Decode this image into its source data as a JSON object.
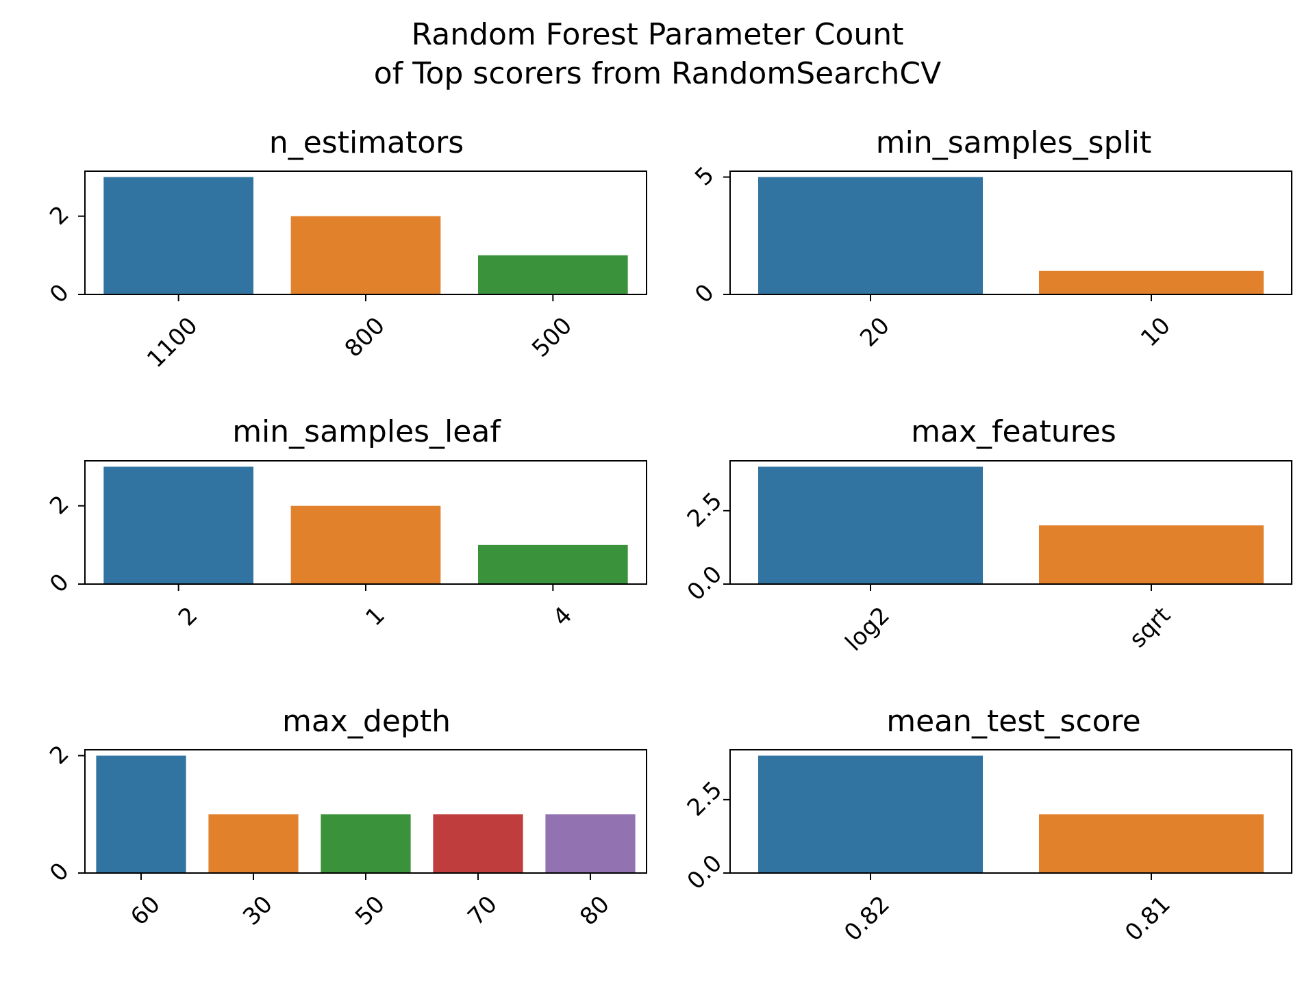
{
  "figure": {
    "title_line1": "Random Forest Parameter Count",
    "title_line2": "of Top scorers from RandomSearchCV"
  },
  "chart_data": [
    {
      "type": "bar",
      "title": "n_estimators",
      "categories": [
        "1100",
        "800",
        "500"
      ],
      "values": [
        3,
        2,
        1
      ],
      "ylim": [
        0,
        3.15
      ],
      "yticks": [
        {
          "v": 0,
          "label": "0"
        },
        {
          "v": 2,
          "label": "2"
        }
      ],
      "colors": [
        "#3274a1",
        "#e1812c",
        "#3a923a"
      ]
    },
    {
      "type": "bar",
      "title": "min_samples_split",
      "categories": [
        "20",
        "10"
      ],
      "values": [
        5,
        1
      ],
      "ylim": [
        0,
        5.25
      ],
      "yticks": [
        {
          "v": 0,
          "label": "0"
        },
        {
          "v": 5,
          "label": "5"
        }
      ],
      "colors": [
        "#3274a1",
        "#e1812c"
      ]
    },
    {
      "type": "bar",
      "title": "min_samples_leaf",
      "categories": [
        "2",
        "1",
        "4"
      ],
      "values": [
        3,
        2,
        1
      ],
      "ylim": [
        0,
        3.15
      ],
      "yticks": [
        {
          "v": 0,
          "label": "0"
        },
        {
          "v": 2,
          "label": "2"
        }
      ],
      "colors": [
        "#3274a1",
        "#e1812c",
        "#3a923a"
      ]
    },
    {
      "type": "bar",
      "title": "max_features",
      "categories": [
        "log2",
        "sqrt"
      ],
      "values": [
        4,
        2
      ],
      "ylim": [
        0,
        4.2
      ],
      "yticks": [
        {
          "v": 0,
          "label": "0.0"
        },
        {
          "v": 2.5,
          "label": "2.5"
        }
      ],
      "colors": [
        "#3274a1",
        "#e1812c"
      ]
    },
    {
      "type": "bar",
      "title": "max_depth",
      "categories": [
        "60",
        "30",
        "50",
        "70",
        "80"
      ],
      "values": [
        2,
        1,
        1,
        1,
        1
      ],
      "ylim": [
        0,
        2.1
      ],
      "yticks": [
        {
          "v": 0,
          "label": "0"
        },
        {
          "v": 2,
          "label": "2"
        }
      ],
      "colors": [
        "#3274a1",
        "#e1812c",
        "#3a923a",
        "#c03d3e",
        "#9372b2"
      ]
    },
    {
      "type": "bar",
      "title": "mean_test_score",
      "categories": [
        "0.82",
        "0.81"
      ],
      "values": [
        4,
        2
      ],
      "ylim": [
        0,
        4.2
      ],
      "yticks": [
        {
          "v": 0,
          "label": "0.0"
        },
        {
          "v": 2.5,
          "label": "2.5"
        }
      ],
      "colors": [
        "#3274a1",
        "#e1812c"
      ]
    }
  ]
}
